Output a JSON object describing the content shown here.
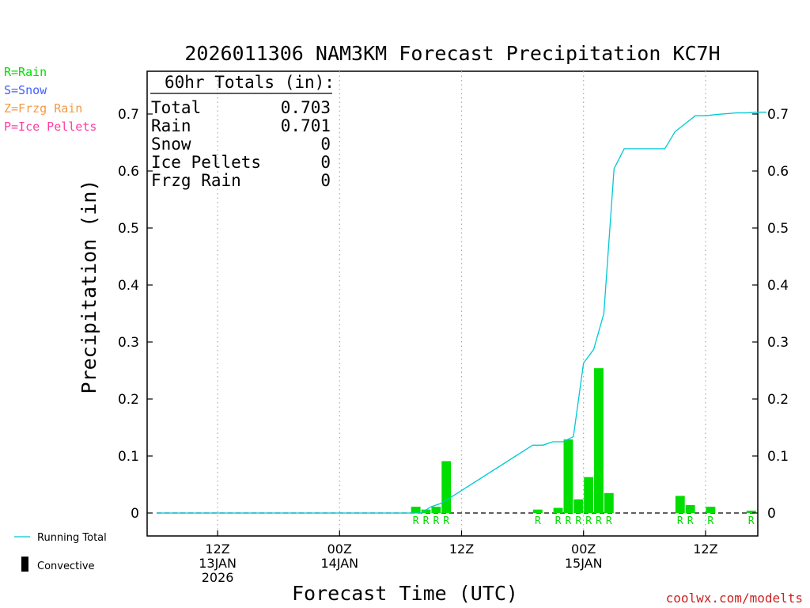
{
  "chart_data": {
    "type": "bar",
    "title": "2026011306 NAM3KM Forecast Precipitation KC7H",
    "xlabel": "Forecast Time (UTC)",
    "ylabel": "Precipitation (in)",
    "ylim": [
      -0.04,
      0.775
    ],
    "y_ticks": [
      0,
      0.1,
      0.2,
      0.3,
      0.4,
      0.5,
      0.6,
      0.7
    ],
    "y_tick_labels": [
      "0",
      "0.1",
      "0.2",
      "0.3",
      "0.4",
      "0.5",
      "0.6",
      "0.7"
    ],
    "xlim": [
      0,
      60
    ],
    "x_ticks": [
      {
        "hour": 6,
        "lines": [
          "12Z",
          "13JAN",
          "2026"
        ]
      },
      {
        "hour": 18,
        "lines": [
          "00Z",
          "14JAN"
        ]
      },
      {
        "hour": 30,
        "lines": [
          "12Z"
        ]
      },
      {
        "hour": 42,
        "lines": [
          "00Z",
          "15JAN"
        ]
      },
      {
        "hour": 54,
        "lines": [
          "12Z"
        ]
      }
    ],
    "series": [
      {
        "name": "Hourly precipitation (Rain)",
        "type": "bar",
        "color": "#00dd00",
        "hours": [
          26,
          27,
          28,
          29,
          38,
          40,
          41,
          42,
          43,
          44,
          45,
          52,
          53,
          55,
          59
        ],
        "values": [
          0.011,
          0.006,
          0.011,
          0.091,
          0.006,
          0.009,
          0.129,
          0.024,
          0.063,
          0.254,
          0.035,
          0.03,
          0.014,
          0.011,
          0.004
        ],
        "type_codes": [
          "R",
          "R",
          "R",
          "R",
          "R",
          "R",
          "R",
          "R",
          "R",
          "R",
          "R",
          "R",
          "R",
          "R",
          "R"
        ]
      },
      {
        "name": "Running Total",
        "type": "line",
        "color": "#00c8d2",
        "hours": [
          0,
          26,
          27,
          28,
          29,
          37,
          38,
          39,
          40,
          41,
          42,
          43,
          44,
          45,
          46,
          50,
          51,
          52,
          53,
          54,
          55,
          57,
          58,
          59,
          60
        ],
        "values": [
          0,
          0,
          0.011,
          0.017,
          0.028,
          0.119,
          0.119,
          0.125,
          0.125,
          0.134,
          0.263,
          0.287,
          0.35,
          0.604,
          0.639,
          0.639,
          0.669,
          0.683,
          0.697,
          0.697,
          0.699,
          0.702,
          0.702,
          0.703,
          0.703
        ]
      }
    ],
    "legend": {
      "type_codes": [
        {
          "label": "R=Rain",
          "color": "#00dd00"
        },
        {
          "label": "S=Snow",
          "color": "#4060ff"
        },
        {
          "label": "Z=Frzg Rain",
          "color": "#f39a45"
        },
        {
          "label": "P=Ice Pellets",
          "color": "#ff3ca0"
        }
      ],
      "running_total_label": "Running Total",
      "convective_label": "Convective",
      "placement": "left"
    },
    "totals_box": {
      "heading": "60hr Totals (in):",
      "rows": [
        {
          "label": "Total",
          "value": "0.703"
        },
        {
          "label": "Rain",
          "value": "0.701"
        },
        {
          "label": "Snow",
          "value": "0"
        },
        {
          "label": "Ice Pellets",
          "value": "0"
        },
        {
          "label": "Frzg Rain",
          "value": "0"
        }
      ],
      "placement": "top-left"
    },
    "credit": "coolwx.com/modelts"
  }
}
